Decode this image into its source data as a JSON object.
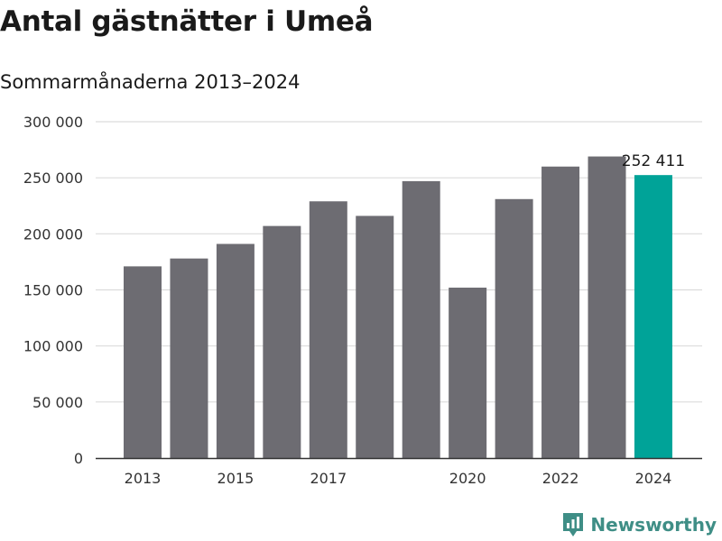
{
  "title": "Antal gästnätter i Umeå",
  "subtitle": "Sommarmånaderna 2013–2024",
  "brand": "Newsworthy",
  "colors": {
    "bar": "#6d6c72",
    "highlight": "#00a398",
    "grid": "#dcdcdc",
    "axis": "#333333",
    "brand": "#3f8e86"
  },
  "chart_data": {
    "type": "bar",
    "categories": [
      "2013",
      "2014",
      "2015",
      "2016",
      "2017",
      "2018",
      "2019",
      "2020",
      "2021",
      "2022",
      "2023",
      "2024"
    ],
    "values": [
      171000,
      178000,
      191000,
      207000,
      229000,
      216000,
      247000,
      152000,
      231000,
      260000,
      269000,
      252411
    ],
    "x_tick_labels": [
      "2013",
      "",
      "2015",
      "",
      "2017",
      "",
      "",
      "2020",
      "",
      "2022",
      "",
      "2024"
    ],
    "y_ticks": [
      0,
      50000,
      100000,
      150000,
      200000,
      250000,
      300000
    ],
    "y_tick_labels": [
      "0",
      "50 000",
      "100 000",
      "150 000",
      "200 000",
      "250 000",
      "300 000"
    ],
    "ylim": [
      0,
      300000
    ],
    "highlight_index": 11,
    "data_label": "252 411",
    "grid": true,
    "xlabel": "",
    "ylabel": ""
  }
}
